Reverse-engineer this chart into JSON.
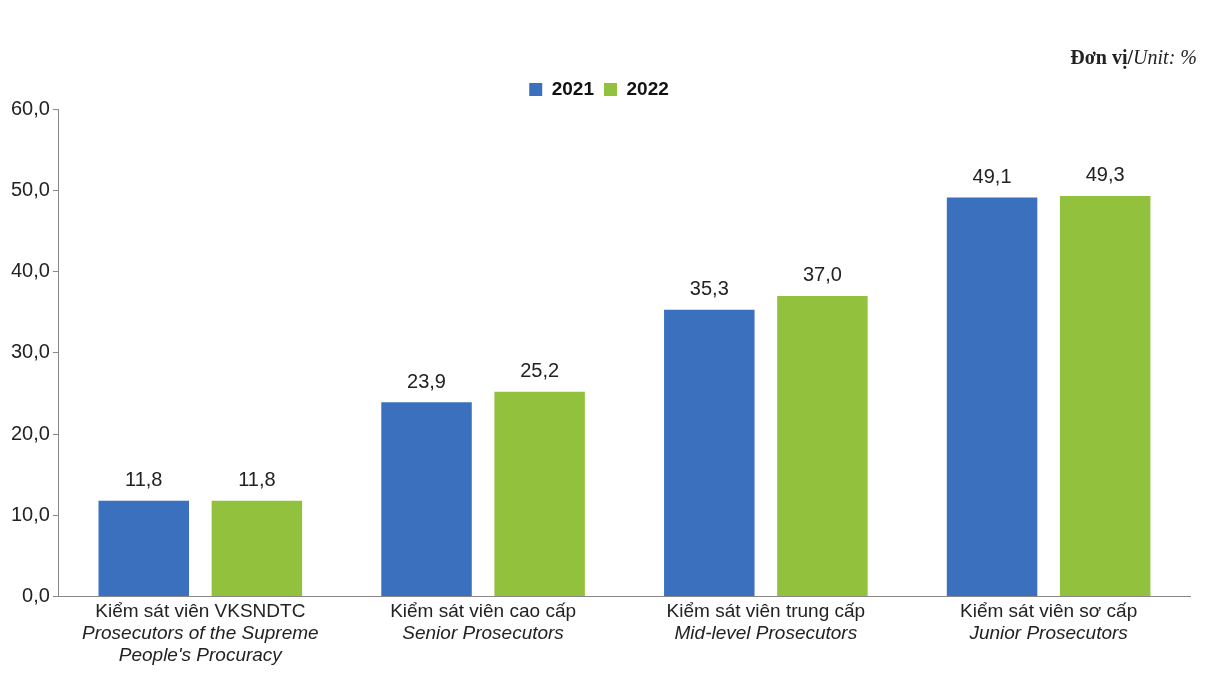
{
  "chart_data": {
    "type": "bar",
    "categories": [
      "Kiểm sát viên VKSNDTC\nProsecutors of the Supreme\nPeople's Procuracy",
      "Kiểm sát viên cao cấp\nSenior Prosecutors",
      "Kiểm sát viên trung cấp\nMid-level Prosecutors",
      "Kiểm sát viên sơ cấp\nJunior Prosecutors"
    ],
    "series": [
      {
        "name": "2021",
        "color": "#3a70bd",
        "values": [
          11.8,
          23.9,
          35.3,
          49.1
        ],
        "value_labels": [
          "11,8",
          "23,9",
          "35,3",
          "49,1"
        ]
      },
      {
        "name": "2022",
        "color": "#92c13e",
        "values": [
          11.8,
          25.2,
          37.0,
          49.3
        ],
        "value_labels": [
          "11,8",
          "25,2",
          "37,0",
          "49,3"
        ]
      }
    ],
    "ylim": [
      0,
      60
    ],
    "yticks": [
      {
        "value": 0,
        "label": "0,0"
      },
      {
        "value": 10,
        "label": "10,0"
      },
      {
        "value": 20,
        "label": "20,0"
      },
      {
        "value": 30,
        "label": "30,0"
      },
      {
        "value": 40,
        "label": "40,0"
      },
      {
        "value": 50,
        "label": "50,0"
      },
      {
        "value": 60,
        "label": "60,0"
      }
    ],
    "legend": "top",
    "grid": false,
    "annotations": [
      "Đơn vị/Unit: %"
    ]
  }
}
